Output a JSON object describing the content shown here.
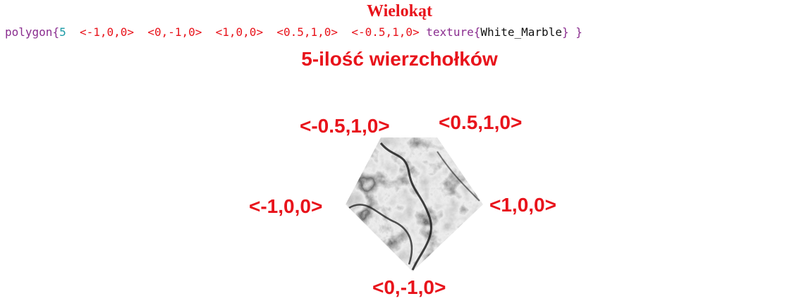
{
  "title": "Wielokąt",
  "code": {
    "keyword": "polygon",
    "open": "{",
    "count": "5",
    "vertices": [
      "<-1,0,0>",
      "<0,-1,0>",
      "<1,0,0>",
      "<0.5,1,0>",
      "<-0.5,1,0>"
    ],
    "texture_keyword": "texture",
    "texture_open": "{",
    "texture_name": "White_Marble",
    "texture_close": "}",
    "close": "}"
  },
  "subtitle": "5-ilość wierzchołków",
  "labels": {
    "top_left": "<-0.5,1,0>",
    "top_right": "<0.5,1,0>",
    "left": "<-1,0,0>",
    "right": "<1,0,0>",
    "bottom": "<0,-1,0>"
  },
  "colors": {
    "accent": "#e8131b",
    "keyword": "#8a2d8f",
    "number": "#1a9aa6"
  }
}
